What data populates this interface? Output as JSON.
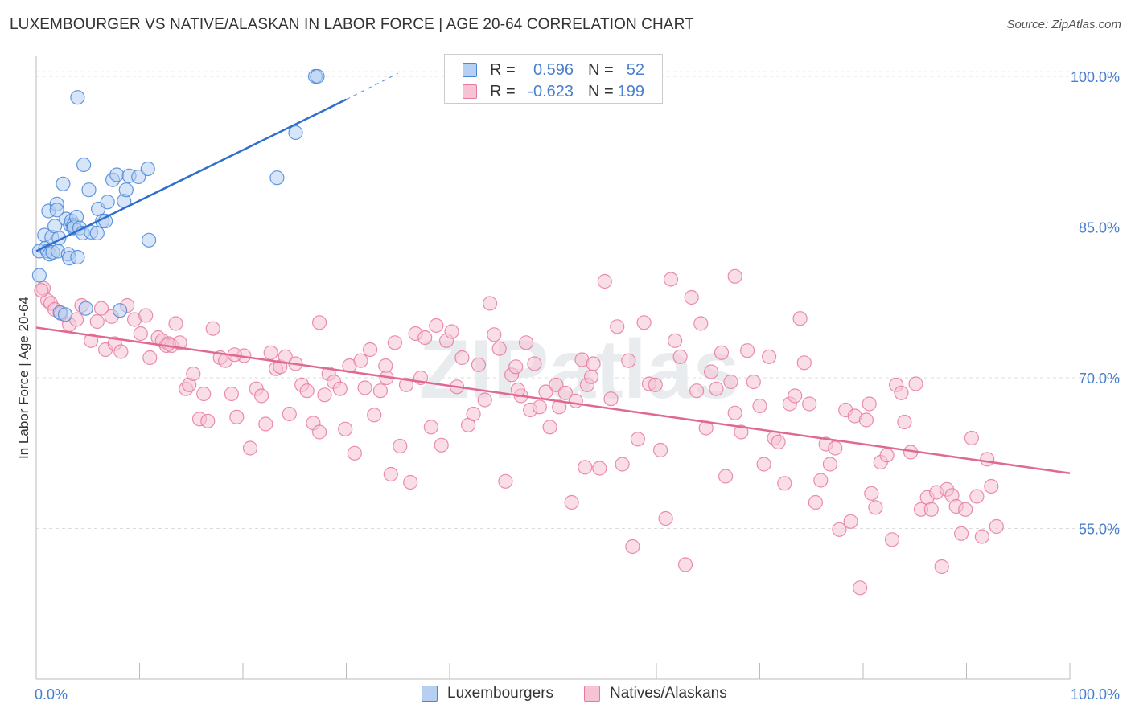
{
  "header": {
    "title": "LUXEMBOURGER VS NATIVE/ALASKAN IN LABOR FORCE | AGE 20-64 CORRELATION CHART",
    "source": "Source: ZipAtlas.com"
  },
  "colors": {
    "blue": "#4a86d8",
    "blue_fill": "#b7d0f2",
    "blue_line": "#2f6fcb",
    "pink": "#e8799e",
    "pink_fill": "#f6c3d3",
    "pink_line": "#e06894",
    "tick_label": "#4a7fcf",
    "grid": "#dddddd"
  },
  "legend": {
    "r_label": "R =",
    "n_label": "N =",
    "series": [
      {
        "r": "0.596",
        "n": "52"
      },
      {
        "r": "-0.623",
        "n": "199"
      }
    ]
  },
  "chart_data": {
    "type": "scatter",
    "title": "LUXEMBOURGER VS NATIVE/ALASKAN IN LABOR FORCE | AGE 20-64 CORRELATION CHART",
    "xlabel": "",
    "ylabel": "In Labor Force | Age 20-64",
    "xlim": [
      0,
      100
    ],
    "ylim": [
      40,
      102
    ],
    "x_tick_labels": [
      "0.0%",
      "100.0%"
    ],
    "y_ticks": [
      100,
      85,
      70,
      55
    ],
    "y_tick_labels": [
      "100.0%",
      "85.0%",
      "70.0%",
      "55.0%"
    ],
    "grid": true,
    "legend_position": "top-center",
    "watermark": "ZIPatlas",
    "series": [
      {
        "name": "Luxembourgers",
        "r": 0.596,
        "n": 52,
        "trend": {
          "x": [
            0,
            30
          ],
          "y": [
            82.6,
            97.7
          ],
          "dashed_to": [
            35,
            100.3
          ]
        },
        "points": [
          [
            0.3,
            80.2
          ],
          [
            0.3,
            82.6
          ],
          [
            0.8,
            84.2
          ],
          [
            0.9,
            82.9
          ],
          [
            1.1,
            82.6
          ],
          [
            1.2,
            86.6
          ],
          [
            1.3,
            82.3
          ],
          [
            1.5,
            84.0
          ],
          [
            1.6,
            82.5
          ],
          [
            1.8,
            85.1
          ],
          [
            2.0,
            87.3
          ],
          [
            2.0,
            86.7
          ],
          [
            2.1,
            82.6
          ],
          [
            2.2,
            83.9
          ],
          [
            2.3,
            76.5
          ],
          [
            2.6,
            89.3
          ],
          [
            2.8,
            76.3
          ],
          [
            2.9,
            85.8
          ],
          [
            3.1,
            82.3
          ],
          [
            3.2,
            81.9
          ],
          [
            3.3,
            85.2
          ],
          [
            3.4,
            85.6
          ],
          [
            3.6,
            85.2
          ],
          [
            3.6,
            84.9
          ],
          [
            3.7,
            85.0
          ],
          [
            3.9,
            86.0
          ],
          [
            4.0,
            82.0
          ],
          [
            4.0,
            97.9
          ],
          [
            4.2,
            84.9
          ],
          [
            4.5,
            84.4
          ],
          [
            4.6,
            91.2
          ],
          [
            4.8,
            76.9
          ],
          [
            5.1,
            88.7
          ],
          [
            5.3,
            84.5
          ],
          [
            5.9,
            84.4
          ],
          [
            6.0,
            86.8
          ],
          [
            6.4,
            85.6
          ],
          [
            6.7,
            85.6
          ],
          [
            6.9,
            87.5
          ],
          [
            7.4,
            89.7
          ],
          [
            7.8,
            90.2
          ],
          [
            8.1,
            76.7
          ],
          [
            8.5,
            87.6
          ],
          [
            8.7,
            88.7
          ],
          [
            9.0,
            90.1
          ],
          [
            9.9,
            90.0
          ],
          [
            10.8,
            90.8
          ],
          [
            10.9,
            83.7
          ],
          [
            23.3,
            89.9
          ],
          [
            25.1,
            94.4
          ],
          [
            27.0,
            100.0
          ],
          [
            27.2,
            100.0
          ]
        ]
      },
      {
        "name": "Natives/Alaskans",
        "r": -0.623,
        "n": 199,
        "trend": {
          "x": [
            0,
            100
          ],
          "y": [
            75.0,
            60.5
          ]
        },
        "points": [
          [
            0.7,
            78.9
          ],
          [
            1.1,
            77.7
          ],
          [
            1.4,
            77.4
          ],
          [
            1.8,
            76.8
          ],
          [
            2.4,
            76.4
          ],
          [
            3.2,
            75.3
          ],
          [
            3.9,
            75.8
          ],
          [
            4.4,
            77.2
          ],
          [
            5.3,
            73.7
          ],
          [
            5.9,
            75.6
          ],
          [
            6.3,
            76.9
          ],
          [
            6.7,
            72.8
          ],
          [
            7.3,
            76.1
          ],
          [
            7.6,
            73.4
          ],
          [
            8.2,
            72.6
          ],
          [
            8.8,
            77.2
          ],
          [
            9.5,
            75.8
          ],
          [
            10.1,
            74.4
          ],
          [
            10.6,
            76.2
          ],
          [
            11.0,
            72.0
          ],
          [
            11.8,
            74.0
          ],
          [
            12.2,
            73.7
          ],
          [
            12.6,
            73.2
          ],
          [
            13.1,
            73.2
          ],
          [
            13.5,
            75.4
          ],
          [
            13.9,
            73.5
          ],
          [
            14.5,
            68.9
          ],
          [
            14.8,
            69.3
          ],
          [
            15.2,
            70.4
          ],
          [
            15.8,
            65.9
          ],
          [
            16.2,
            68.4
          ],
          [
            16.6,
            65.7
          ],
          [
            17.1,
            74.9
          ],
          [
            17.8,
            72.0
          ],
          [
            18.3,
            71.7
          ],
          [
            18.9,
            68.4
          ],
          [
            19.4,
            66.1
          ],
          [
            20.1,
            72.2
          ],
          [
            20.7,
            63.0
          ],
          [
            21.3,
            68.9
          ],
          [
            21.8,
            68.2
          ],
          [
            22.2,
            65.4
          ],
          [
            22.7,
            72.5
          ],
          [
            23.2,
            70.9
          ],
          [
            23.6,
            71.1
          ],
          [
            24.1,
            72.1
          ],
          [
            24.5,
            66.4
          ],
          [
            25.1,
            71.4
          ],
          [
            25.7,
            69.3
          ],
          [
            26.2,
            68.7
          ],
          [
            26.8,
            65.5
          ],
          [
            27.4,
            64.6
          ],
          [
            27.9,
            68.3
          ],
          [
            28.3,
            70.4
          ],
          [
            28.8,
            69.6
          ],
          [
            29.4,
            68.9
          ],
          [
            29.9,
            64.9
          ],
          [
            30.3,
            71.2
          ],
          [
            30.8,
            62.5
          ],
          [
            31.4,
            71.7
          ],
          [
            31.8,
            69.0
          ],
          [
            32.3,
            72.8
          ],
          [
            32.7,
            66.3
          ],
          [
            33.3,
            68.7
          ],
          [
            33.8,
            71.2
          ],
          [
            34.3,
            60.4
          ],
          [
            34.7,
            73.5
          ],
          [
            35.2,
            63.2
          ],
          [
            35.8,
            69.3
          ],
          [
            36.2,
            59.6
          ],
          [
            36.7,
            74.4
          ],
          [
            37.2,
            70.0
          ],
          [
            37.6,
            74.0
          ],
          [
            38.2,
            65.1
          ],
          [
            38.7,
            75.2
          ],
          [
            39.2,
            63.3
          ],
          [
            39.7,
            73.7
          ],
          [
            40.2,
            74.6
          ],
          [
            40.7,
            69.1
          ],
          [
            41.2,
            72.0
          ],
          [
            41.8,
            65.3
          ],
          [
            42.3,
            66.4
          ],
          [
            42.8,
            71.3
          ],
          [
            43.4,
            67.8
          ],
          [
            43.9,
            77.4
          ],
          [
            44.3,
            74.3
          ],
          [
            44.8,
            72.9
          ],
          [
            45.4,
            59.7
          ],
          [
            46.0,
            70.3
          ],
          [
            46.4,
            71.1
          ],
          [
            46.9,
            68.2
          ],
          [
            47.4,
            73.5
          ],
          [
            47.8,
            66.8
          ],
          [
            48.2,
            71.4
          ],
          [
            48.7,
            67.1
          ],
          [
            49.3,
            68.6
          ],
          [
            49.7,
            65.1
          ],
          [
            50.3,
            69.3
          ],
          [
            50.6,
            67.1
          ],
          [
            51.2,
            68.5
          ],
          [
            51.8,
            57.6
          ],
          [
            52.2,
            67.7
          ],
          [
            52.8,
            71.8
          ],
          [
            53.3,
            69.3
          ],
          [
            53.9,
            71.4
          ],
          [
            54.5,
            61.0
          ],
          [
            55.0,
            79.6
          ],
          [
            55.6,
            67.9
          ],
          [
            56.2,
            75.1
          ],
          [
            56.7,
            61.4
          ],
          [
            57.3,
            71.7
          ],
          [
            57.7,
            53.2
          ],
          [
            58.2,
            63.9
          ],
          [
            58.8,
            75.5
          ],
          [
            59.3,
            69.4
          ],
          [
            59.9,
            69.3
          ],
          [
            60.4,
            62.8
          ],
          [
            60.9,
            56.0
          ],
          [
            61.4,
            79.8
          ],
          [
            61.8,
            73.7
          ],
          [
            62.3,
            72.1
          ],
          [
            62.8,
            51.4
          ],
          [
            63.4,
            78.0
          ],
          [
            63.9,
            68.7
          ],
          [
            64.3,
            75.4
          ],
          [
            64.8,
            65.0
          ],
          [
            65.3,
            70.6
          ],
          [
            65.8,
            68.9
          ],
          [
            66.3,
            72.5
          ],
          [
            66.7,
            60.2
          ],
          [
            67.2,
            69.6
          ],
          [
            67.6,
            66.5
          ],
          [
            68.2,
            64.6
          ],
          [
            68.8,
            72.7
          ],
          [
            69.4,
            69.6
          ],
          [
            70.0,
            67.2
          ],
          [
            70.4,
            61.4
          ],
          [
            70.9,
            72.1
          ],
          [
            71.4,
            64.0
          ],
          [
            71.8,
            63.6
          ],
          [
            72.4,
            59.5
          ],
          [
            72.9,
            67.4
          ],
          [
            73.4,
            68.2
          ],
          [
            73.9,
            75.9
          ],
          [
            74.3,
            71.5
          ],
          [
            74.8,
            67.4
          ],
          [
            75.4,
            57.6
          ],
          [
            75.9,
            59.8
          ],
          [
            76.4,
            63.4
          ],
          [
            76.8,
            61.4
          ],
          [
            77.3,
            63.0
          ],
          [
            77.7,
            54.9
          ],
          [
            78.3,
            66.8
          ],
          [
            78.8,
            55.7
          ],
          [
            79.2,
            66.2
          ],
          [
            79.7,
            49.1
          ],
          [
            80.3,
            65.8
          ],
          [
            80.8,
            58.5
          ],
          [
            81.2,
            57.1
          ],
          [
            81.7,
            61.6
          ],
          [
            82.3,
            62.3
          ],
          [
            82.8,
            53.9
          ],
          [
            83.2,
            69.3
          ],
          [
            83.7,
            68.5
          ],
          [
            84.0,
            65.6
          ],
          [
            84.6,
            62.6
          ],
          [
            85.1,
            69.4
          ],
          [
            85.6,
            56.9
          ],
          [
            86.2,
            58.1
          ],
          [
            86.6,
            56.9
          ],
          [
            87.1,
            58.6
          ],
          [
            87.6,
            51.2
          ],
          [
            88.1,
            58.9
          ],
          [
            88.6,
            58.3
          ],
          [
            89.0,
            57.2
          ],
          [
            89.5,
            54.5
          ],
          [
            89.9,
            56.9
          ],
          [
            90.5,
            64.0
          ],
          [
            91.0,
            58.2
          ],
          [
            91.5,
            54.2
          ],
          [
            92.0,
            61.9
          ],
          [
            92.4,
            59.2
          ],
          [
            92.9,
            55.2
          ],
          [
            0.5,
            78.7
          ],
          [
            12.8,
            73.4
          ],
          [
            19.2,
            72.3
          ],
          [
            33.9,
            70.0
          ],
          [
            46.6,
            68.8
          ],
          [
            53.7,
            70.1
          ],
          [
            67.6,
            80.1
          ],
          [
            80.6,
            67.4
          ],
          [
            53.1,
            61.1
          ],
          [
            27.4,
            75.5
          ]
        ]
      }
    ]
  },
  "legend_bottom": [
    "Luxembourgers",
    "Natives/Alaskans"
  ]
}
